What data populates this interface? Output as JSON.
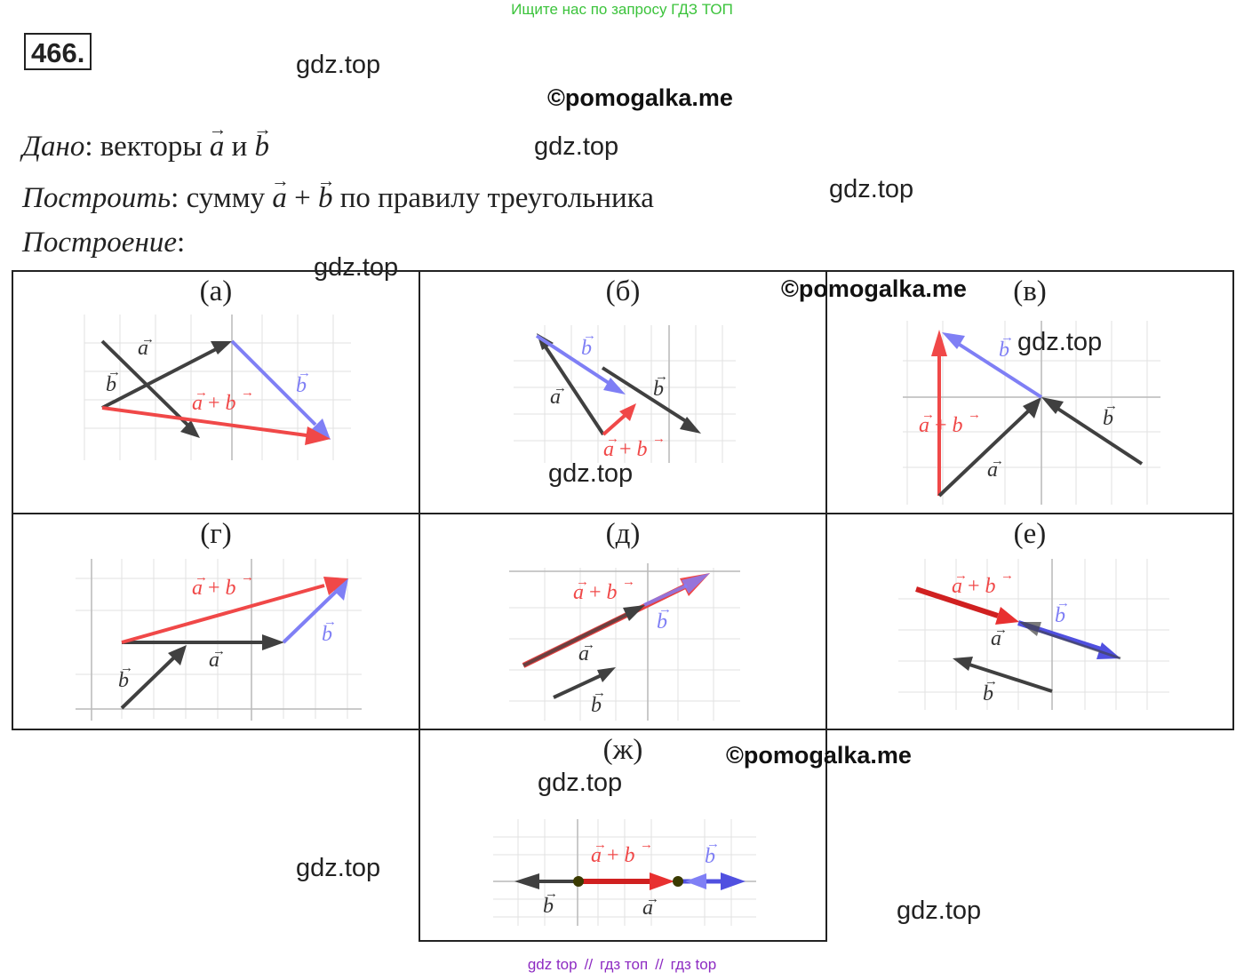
{
  "header": {
    "banner": "Ищите нас по запросу ГДЗ ТОП",
    "problem_number": "466."
  },
  "watermarks": {
    "gdz": "gdz.top",
    "pomogalka": "©pomogalka.me"
  },
  "statement": {
    "given_label": "Дано",
    "given_text": ": векторы",
    "conj": "и",
    "build_label": "Построить",
    "build_text": ": сумму",
    "plus": "+",
    "build_rule": "по правилу треугольника",
    "construction_label": "Построение",
    "colon": ":"
  },
  "vectors": {
    "a": "a",
    "b": "b",
    "sum_a": "a",
    "sum_plus": "+",
    "sum_b": "b"
  },
  "cells": [
    {
      "label": "(а)"
    },
    {
      "label": "(б)"
    },
    {
      "label": "(в)"
    },
    {
      "label": "(г)"
    },
    {
      "label": "(д)"
    },
    {
      "label": "(е)"
    },
    {
      "label": "(ж)"
    }
  ],
  "colors": {
    "vector_a": "#404040",
    "vector_b": "#7f7ff5",
    "sum": "#f04848",
    "grid": "#e2e2e2",
    "axis": "#b9b9b9",
    "point": "#3a3a00"
  },
  "footer": {
    "links": [
      "gdz top",
      "гдз топ",
      "гдз top"
    ],
    "separator": "//"
  }
}
